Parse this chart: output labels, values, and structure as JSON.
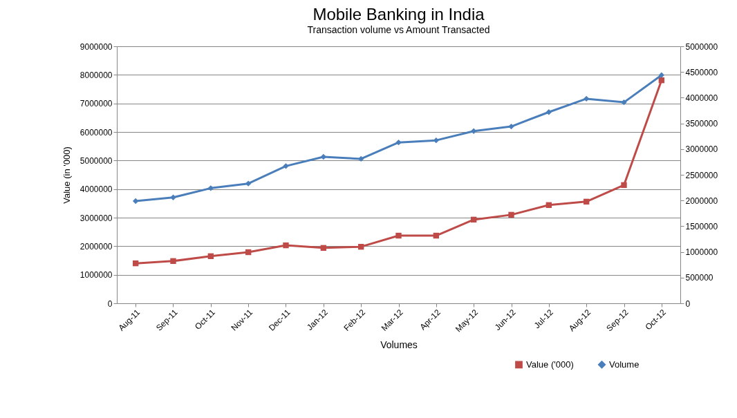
{
  "chart_data": {
    "type": "line",
    "title": "Mobile Banking in India",
    "subtitle": "Transaction volume vs Amount Transacted",
    "xlabel": "Volumes",
    "ylabel": "Value (in '000)",
    "categories": [
      "Aug-11",
      "Sep-11",
      "Oct-11",
      "Nov-11",
      "Dec-11",
      "Jan-12",
      "Feb-12",
      "Mar-12",
      "Apr-12",
      "May-12",
      "Jun-12",
      "Jul-12",
      "Aug-12",
      "Sep-12",
      "Oct-12"
    ],
    "series": [
      {
        "name": "Value ('000)",
        "color": "#be4b48",
        "marker": "square",
        "values": [
          1400000,
          1480000,
          1650000,
          1790000,
          2030000,
          1940000,
          1980000,
          2370000,
          2370000,
          2930000,
          3100000,
          3440000,
          3560000,
          4140000,
          7810000
        ]
      },
      {
        "name": "Volume",
        "color": "#4a7ebb",
        "marker": "diamond",
        "axis": "y2",
        "values": [
          1990000,
          2060000,
          2240000,
          2330000,
          2670000,
          2850000,
          2810000,
          3130000,
          3170000,
          3350000,
          3440000,
          3720000,
          3980000,
          3910000,
          4440000
        ]
      }
    ],
    "ylim": [
      0,
      9000000
    ],
    "yticks": [
      0,
      1000000,
      2000000,
      3000000,
      4000000,
      5000000,
      6000000,
      7000000,
      8000000,
      9000000
    ],
    "y2lim": [
      0,
      5000000
    ],
    "y2ticks": [
      0,
      500000,
      1000000,
      1500000,
      2000000,
      2500000,
      3000000,
      3500000,
      4000000,
      4500000,
      5000000
    ],
    "grid": "y",
    "legend": "bottom right"
  }
}
